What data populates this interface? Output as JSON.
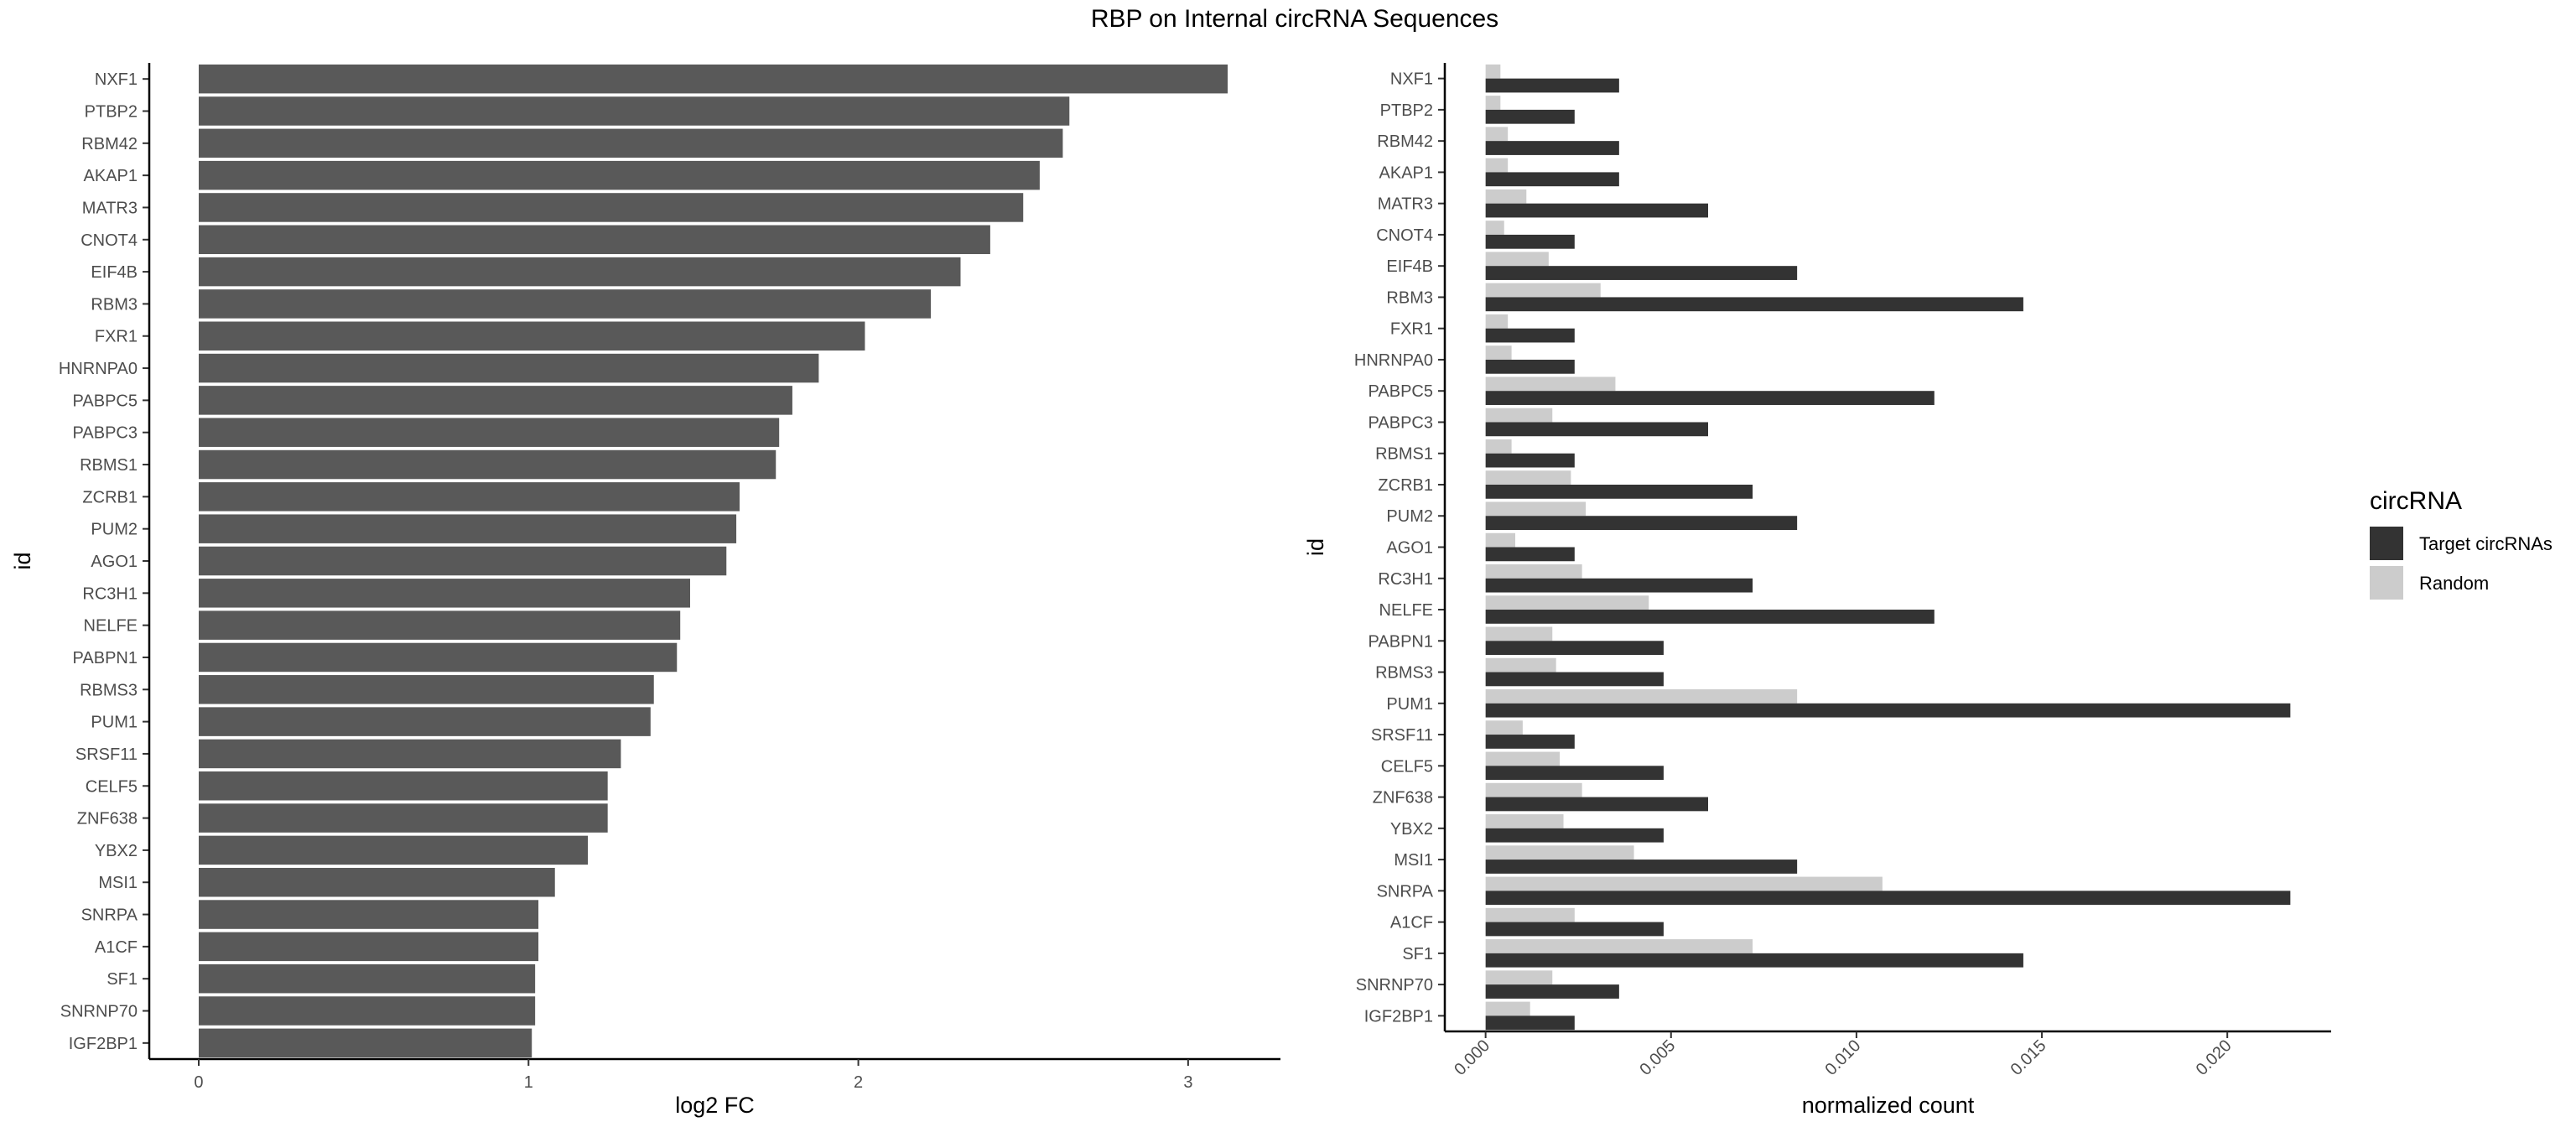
{
  "figure": {
    "title": "RBP on Internal circRNA Sequences"
  },
  "chart_data": [
    {
      "type": "bar",
      "orientation": "horizontal",
      "categories": [
        "NXF1",
        "PTBP2",
        "RBM42",
        "AKAP1",
        "MATR3",
        "CNOT4",
        "EIF4B",
        "RBM3",
        "FXR1",
        "HNRNPA0",
        "PABPC5",
        "PABPC3",
        "RBMS1",
        "ZCRB1",
        "PUM2",
        "AGO1",
        "RC3H1",
        "NELFE",
        "PABPN1",
        "RBMS3",
        "PUM1",
        "SRSF11",
        "CELF5",
        "ZNF638",
        "YBX2",
        "MSI1",
        "SNRPA",
        "A1CF",
        "SF1",
        "SNRNP70",
        "IGF2BP1"
      ],
      "values": [
        3.12,
        2.64,
        2.62,
        2.55,
        2.5,
        2.4,
        2.31,
        2.22,
        2.02,
        1.88,
        1.8,
        1.76,
        1.75,
        1.64,
        1.63,
        1.6,
        1.49,
        1.46,
        1.45,
        1.38,
        1.37,
        1.28,
        1.24,
        1.24,
        1.18,
        1.08,
        1.03,
        1.03,
        1.02,
        1.02,
        1.01
      ],
      "xlabel": "log2 FC",
      "ylabel": "id",
      "xlim": [
        -0.15,
        3.28
      ],
      "xticks": [
        0,
        1,
        2,
        3
      ],
      "xtick_labels": [
        "0",
        "1",
        "2",
        "3"
      ],
      "bar_color": "#595959",
      "grid": false
    },
    {
      "type": "bar",
      "orientation": "horizontal",
      "categories": [
        "NXF1",
        "PTBP2",
        "RBM42",
        "AKAP1",
        "MATR3",
        "CNOT4",
        "EIF4B",
        "RBM3",
        "FXR1",
        "HNRNPA0",
        "PABPC5",
        "PABPC3",
        "RBMS1",
        "ZCRB1",
        "PUM2",
        "AGO1",
        "RC3H1",
        "NELFE",
        "PABPN1",
        "RBMS3",
        "PUM1",
        "SRSF11",
        "CELF5",
        "ZNF638",
        "YBX2",
        "MSI1",
        "SNRPA",
        "A1CF",
        "SF1",
        "SNRNP70",
        "IGF2BP1"
      ],
      "series": [
        {
          "name": "Target circRNAs",
          "color": "#333333",
          "values": [
            0.0036,
            0.0024,
            0.0036,
            0.0036,
            0.006,
            0.0024,
            0.0084,
            0.0145,
            0.0024,
            0.0024,
            0.0121,
            0.006,
            0.0024,
            0.0072,
            0.0084,
            0.0024,
            0.0072,
            0.0121,
            0.0048,
            0.0048,
            0.0217,
            0.0024,
            0.0048,
            0.006,
            0.0048,
            0.0084,
            0.0217,
            0.0048,
            0.0145,
            0.0036,
            0.0024
          ]
        },
        {
          "name": "Random",
          "color": "#cccccc",
          "values": [
            0.0004,
            0.0004,
            0.0006,
            0.0006,
            0.0011,
            0.0005,
            0.0017,
            0.0031,
            0.0006,
            0.0007,
            0.0035,
            0.0018,
            0.0007,
            0.0023,
            0.0027,
            0.0008,
            0.0026,
            0.0044,
            0.0018,
            0.0019,
            0.0084,
            0.001,
            0.002,
            0.0026,
            0.0021,
            0.004,
            0.0107,
            0.0024,
            0.0072,
            0.0018,
            0.0012
          ]
        }
      ],
      "xlabel": "normalized count",
      "ylabel": "id",
      "xlim": [
        -0.0011,
        0.0228
      ],
      "xticks": [
        0,
        0.005,
        0.01,
        0.015,
        0.02
      ],
      "xtick_labels": [
        "0.000",
        "0.005",
        "0.010",
        "0.015",
        "0.020"
      ],
      "legend": {
        "title": "circRNA",
        "position": "right"
      },
      "grid": false
    }
  ]
}
